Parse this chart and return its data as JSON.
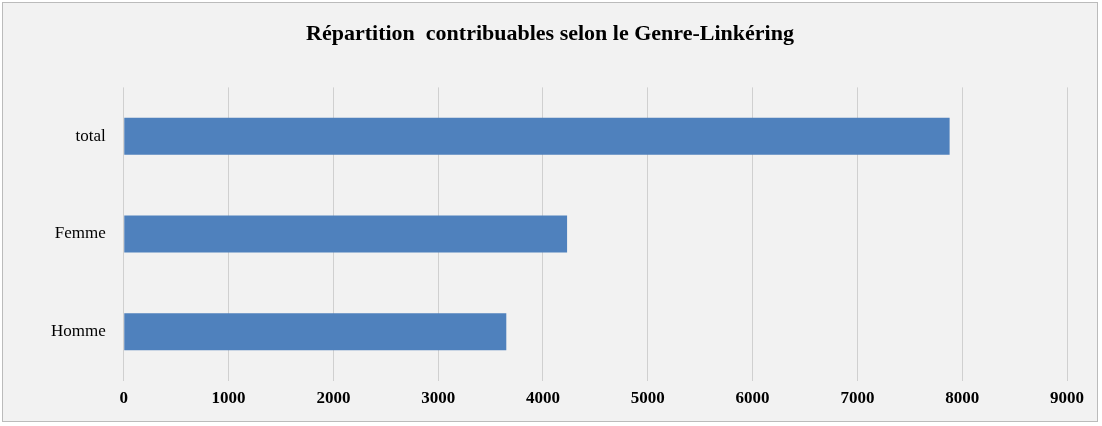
{
  "chart_data": {
    "type": "bar",
    "orientation": "horizontal",
    "title": "Répartition  contribuables selon le Genre-Linkéring",
    "categories": [
      "total",
      "Femme",
      "Homme"
    ],
    "values": [
      7880,
      4230,
      3650
    ],
    "color": "#4f81bd",
    "xlim": [
      0,
      9000
    ],
    "xticks": [
      0,
      1000,
      2000,
      3000,
      4000,
      5000,
      6000,
      7000,
      8000,
      9000
    ],
    "grid": "x",
    "legend": false
  }
}
